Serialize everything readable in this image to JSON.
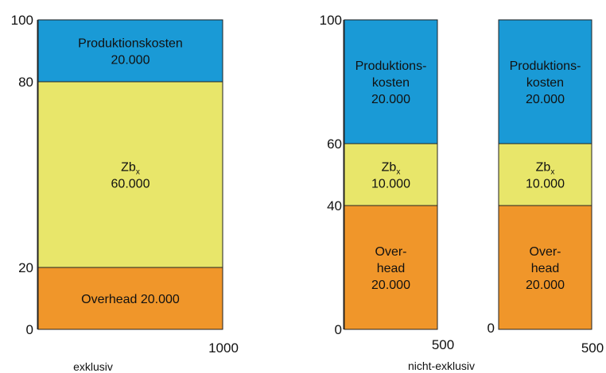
{
  "chart_data": [
    {
      "type": "stacked-bar",
      "panel": "exklusiv",
      "xlabel": "exklusiv",
      "x_end_label": "1000",
      "ylim": [
        0,
        100
      ],
      "y_ticks": [
        "0",
        "20",
        "80",
        "100"
      ],
      "bars": [
        {
          "segments": [
            {
              "from": 0,
              "to": 20,
              "color": "#f0962a",
              "lines": [
                "Overhead 20.000"
              ]
            },
            {
              "from": 20,
              "to": 80,
              "color": "#e8e66a",
              "lines": [
                "Zb|x",
                "60.000"
              ]
            },
            {
              "from": 80,
              "to": 100,
              "color": "#1a9ad6",
              "lines": [
                "Produktionskosten",
                "20.000"
              ]
            }
          ]
        }
      ]
    },
    {
      "type": "stacked-bar",
      "panel": "nicht-exklusiv",
      "xlabel": "nicht-exklusiv",
      "ylim": [
        0,
        100
      ],
      "y_ticks": [
        "0",
        "40",
        "60",
        "100"
      ],
      "bars": [
        {
          "x_end_label": "500",
          "segments": [
            {
              "from": 0,
              "to": 40,
              "color": "#f0962a",
              "lines": [
                "Over-",
                "head",
                "20.000"
              ]
            },
            {
              "from": 40,
              "to": 60,
              "color": "#e8e66a",
              "lines": [
                "Zb|x",
                "10.000"
              ]
            },
            {
              "from": 60,
              "to": 100,
              "color": "#1a9ad6",
              "lines": [
                "Produktions-",
                "kosten",
                "20.000"
              ]
            }
          ]
        },
        {
          "x_end_label": "500",
          "y_zero_label": "0",
          "segments": [
            {
              "from": 0,
              "to": 40,
              "color": "#f0962a",
              "lines": [
                "Over-",
                "head",
                "20.000"
              ]
            },
            {
              "from": 40,
              "to": 60,
              "color": "#e8e66a",
              "lines": [
                "Zb|x",
                "10.000"
              ]
            },
            {
              "from": 60,
              "to": 100,
              "color": "#1a9ad6",
              "lines": [
                "Produktions-",
                "kosten",
                "20.000"
              ]
            }
          ]
        }
      ]
    }
  ]
}
